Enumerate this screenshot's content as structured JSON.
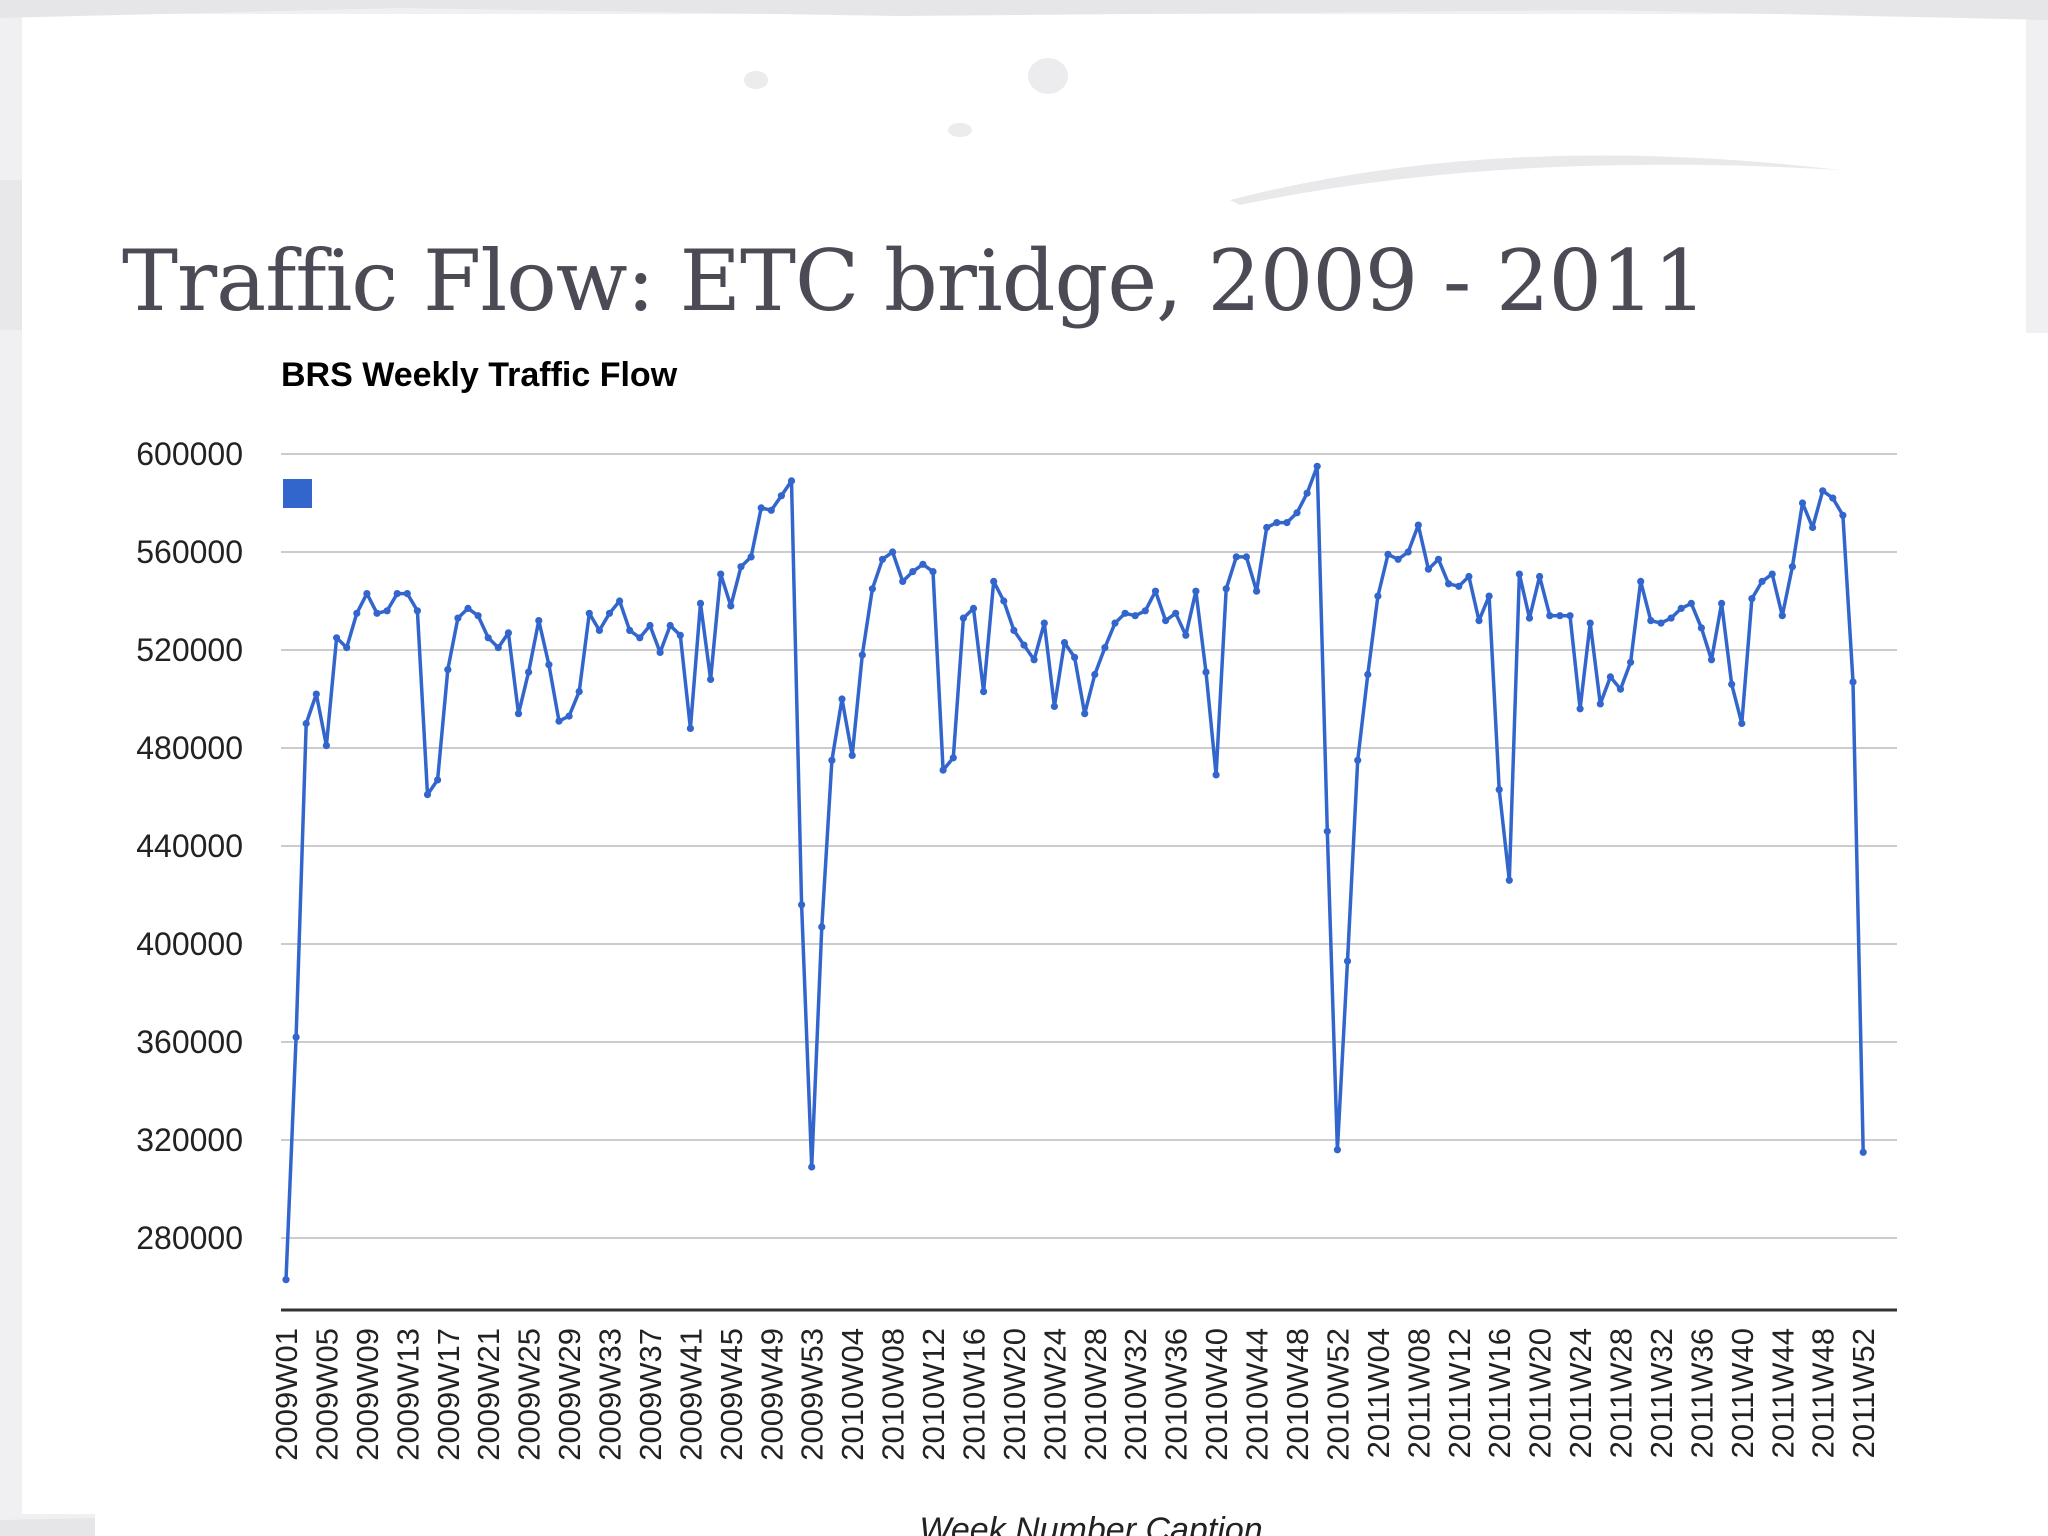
{
  "slide": {
    "title": "Traffic Flow: ETC bridge, 2009 - 2011"
  },
  "colors": {
    "series": "#3366cc",
    "gridline": "#cccccc",
    "axis": "#333333",
    "slide_background": "#f0eff1",
    "panel": "#ffffff"
  },
  "chart_data": {
    "type": "line",
    "title": "BRS Weekly Traffic Flow",
    "xlabel": "Week Number Caption",
    "ylabel": "",
    "ylim": [
      260000,
      600000
    ],
    "yticks": [
      600000,
      560000,
      520000,
      480000,
      440000,
      400000,
      360000,
      320000,
      280000
    ],
    "grid": true,
    "legend": "top-left",
    "x_tick_labels": [
      "2009W01",
      "2009W05",
      "2009W09",
      "2009W13",
      "2009W17",
      "2009W21",
      "2009W25",
      "2009W29",
      "2009W33",
      "2009W37",
      "2009W41",
      "2009W45",
      "2009W49",
      "2009W53",
      "2010W04",
      "2010W08",
      "2010W12",
      "2010W16",
      "2010W20",
      "2010W24",
      "2010W28",
      "2010W32",
      "2010W36",
      "2010W40",
      "2010W44",
      "2010W48",
      "2010W52",
      "2011W04",
      "2011W08",
      "2011W12",
      "2011W16",
      "2011W20",
      "2011W24",
      "2011W28",
      "2011W32",
      "2011W36",
      "2011W40",
      "2011W44",
      "2011W48",
      "2011W52"
    ],
    "series": [
      {
        "values": [
          263000,
          362000,
          490000,
          502000,
          481000,
          525000,
          521000,
          535000,
          543000,
          535000,
          536000,
          543000,
          543000,
          536000,
          461000,
          467000,
          512000,
          533000,
          537000,
          534000,
          525000,
          521000,
          527000,
          494000,
          511000,
          532000,
          514000,
          491000,
          493000,
          503000,
          535000,
          528000,
          535000,
          540000,
          528000,
          525000,
          530000,
          519000,
          530000,
          526000,
          488000,
          539000,
          508000,
          551000,
          538000,
          554000,
          558000,
          578000,
          577000,
          583000,
          589000,
          416000,
          309000,
          407000,
          475000,
          500000,
          477000,
          518000,
          545000,
          557000,
          560000,
          548000,
          552000,
          555000,
          552000,
          471000,
          476000,
          533000,
          537000,
          503000,
          548000,
          540000,
          528000,
          522000,
          516000,
          531000,
          497000,
          523000,
          517000,
          494000,
          510000,
          521000,
          531000,
          535000,
          534000,
          536000,
          544000,
          532000,
          535000,
          526000,
          544000,
          511000,
          469000,
          545000,
          558000,
          558000,
          544000,
          570000,
          572000,
          572000,
          576000,
          584000,
          595000,
          446000,
          316000,
          393000,
          475000,
          510000,
          542000,
          559000,
          557000,
          560000,
          571000,
          553000,
          557000,
          547000,
          546000,
          550000,
          532000,
          542000,
          463000,
          426000,
          551000,
          533000,
          550000,
          534000,
          534000,
          534000,
          496000,
          531000,
          498000,
          509000,
          504000,
          515000,
          548000,
          532000,
          531000,
          533000,
          537000,
          539000,
          529000,
          516000,
          539000,
          506000,
          490000,
          541000,
          548000,
          551000,
          534000,
          554000,
          580000,
          570000,
          585000,
          582000,
          575000,
          507000,
          315000
        ]
      }
    ]
  }
}
